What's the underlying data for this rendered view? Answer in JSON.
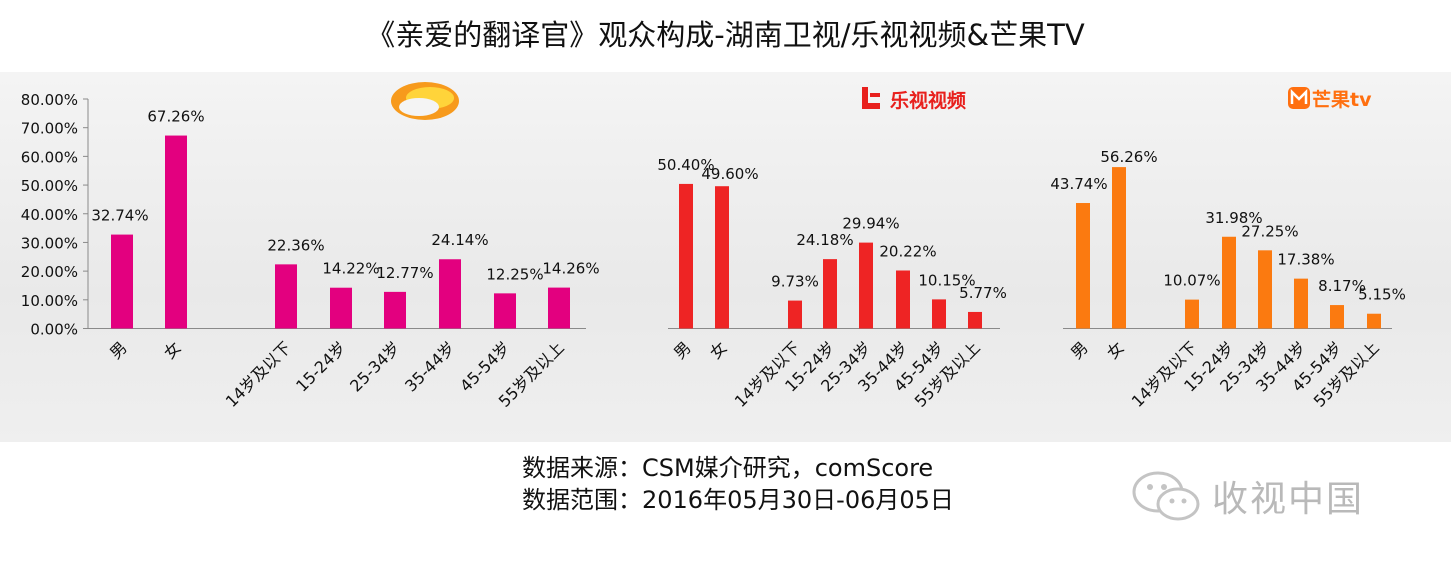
{
  "title": "《亲爱的翻译官》观众构成-湖南卫视/乐视视频&芒果TV",
  "footer": {
    "source": "数据来源：CSM媒介研究，comScore",
    "range": "数据范围：2016年05月30日-06月05日"
  },
  "watermark": {
    "text": "收视中国",
    "icon": "wechat-icon"
  },
  "logos": {
    "letv": {
      "text": "乐视视频",
      "icon": "letv-logo-icon"
    },
    "mango": {
      "text": "芒果tv",
      "icon": "mango-logo-icon"
    },
    "hunan": {
      "icon": "hunan-tv-logo-icon"
    }
  },
  "colors": {
    "hunan": "#e3007f",
    "letv": "#ee2424",
    "mango": "#fb7a10"
  },
  "chart_data": [
    {
      "type": "bar",
      "channel": "湖南卫视",
      "categories": [
        "男",
        "女",
        "14岁及以下",
        "15-24岁",
        "25-34岁",
        "35-44岁",
        "45-54岁",
        "55岁及以上"
      ],
      "values": [
        32.74,
        67.26,
        22.36,
        14.22,
        12.77,
        24.14,
        12.25,
        14.26
      ],
      "labels": [
        "32.74%",
        "67.26%",
        "22.36%",
        "14.22%",
        "12.77%",
        "24.14%",
        "12.25%",
        "14.26%"
      ],
      "ylim": [
        0,
        80
      ],
      "yticks": [
        "0.00%",
        "10.00%",
        "20.00%",
        "30.00%",
        "40.00%",
        "50.00%",
        "60.00%",
        "70.00%",
        "80.00%"
      ],
      "color": "#e3007f"
    },
    {
      "type": "bar",
      "channel": "乐视视频",
      "categories": [
        "男",
        "女",
        "14岁及以下",
        "15-24岁",
        "25-34岁",
        "35-44岁",
        "45-54岁",
        "55岁及以上"
      ],
      "values": [
        50.4,
        49.6,
        9.73,
        24.18,
        29.94,
        20.22,
        10.15,
        5.77
      ],
      "labels": [
        "50.40%",
        "49.60%",
        "9.73%",
        "24.18%",
        "29.94%",
        "20.22%",
        "10.15%",
        "5.77%"
      ],
      "color": "#ee2424"
    },
    {
      "type": "bar",
      "channel": "芒果TV",
      "categories": [
        "男",
        "女",
        "14岁及以下",
        "15-24岁",
        "25-34岁",
        "35-44岁",
        "45-54岁",
        "55岁及以上"
      ],
      "values": [
        43.74,
        56.26,
        10.07,
        31.98,
        27.25,
        17.38,
        8.17,
        5.15
      ],
      "labels": [
        "43.74%",
        "56.26%",
        "10.07%",
        "31.98%",
        "27.25%",
        "17.38%",
        "8.17%",
        "5.15%"
      ],
      "color": "#fb7a10"
    }
  ]
}
